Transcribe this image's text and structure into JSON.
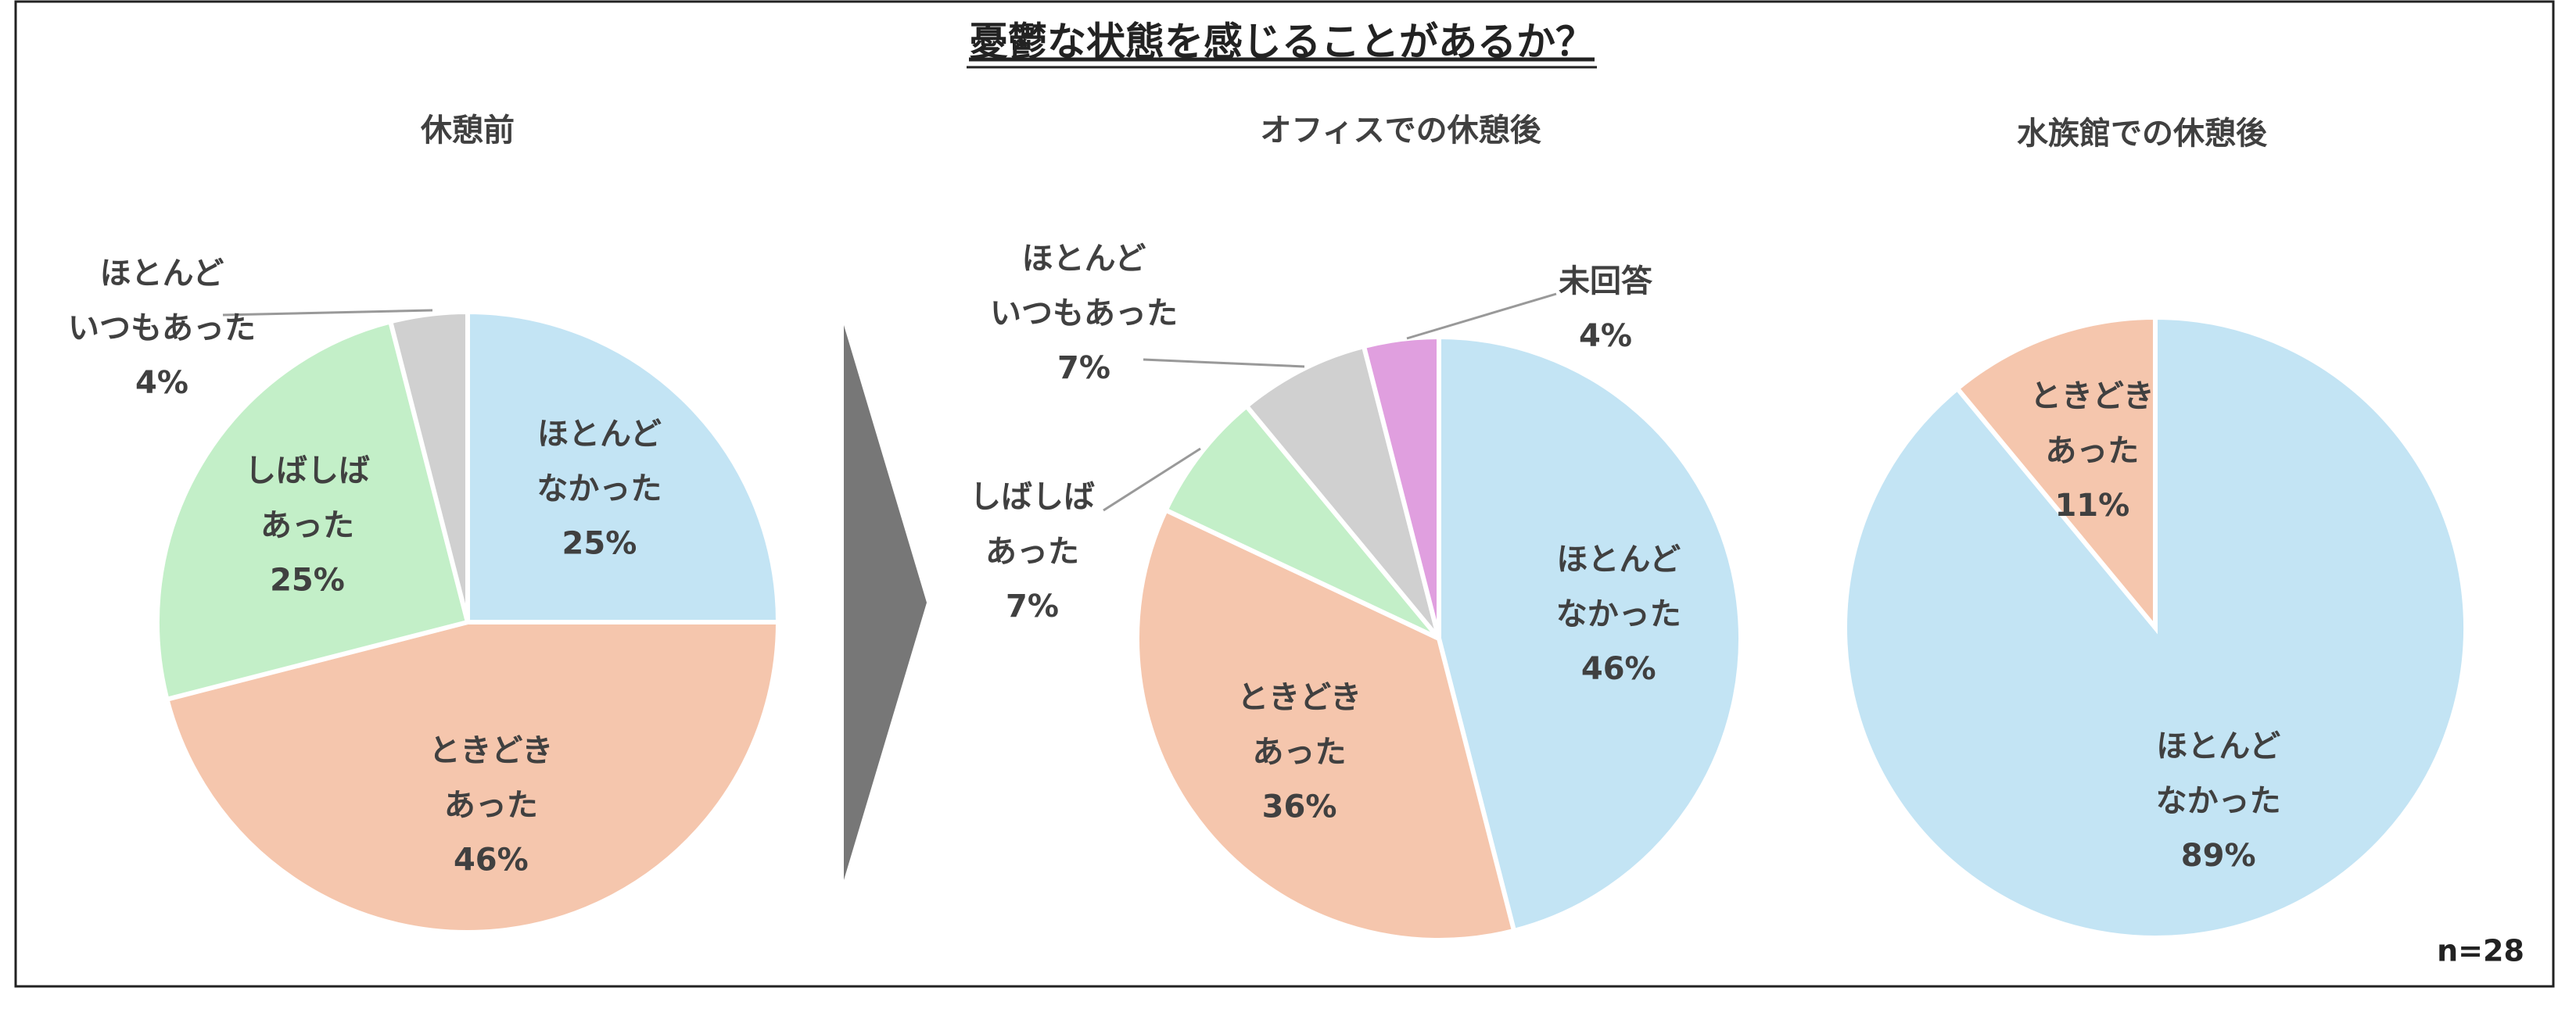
{
  "title": "憂鬱な状態を感じることがあるか？",
  "note": "n=28",
  "chart_data": [
    {
      "type": "pie",
      "title": "休憩前",
      "categories": [
        "ほとんど\nなかった",
        "ときどき\nあった",
        "しばしば\nあった",
        "ほとんど\nいつもあった"
      ],
      "values": [
        25,
        46,
        25,
        4
      ],
      "value_labels": [
        "25%",
        "46%",
        "25%",
        "4%"
      ],
      "colors": [
        "#c3e4f4",
        "#f5c6ad",
        "#c3efc8",
        "#d0d0d0"
      ]
    },
    {
      "type": "pie",
      "title": "オフィスでの休憩後",
      "categories": [
        "ほとんど\nなかった",
        "ときどき\nあった",
        "しばしば\nあった",
        "ほとんど\nいつもあった",
        "未回答"
      ],
      "values": [
        46,
        36,
        7,
        7,
        4
      ],
      "value_labels": [
        "46%",
        "36%",
        "7%",
        "7%",
        "4%"
      ],
      "colors": [
        "#c3e4f4",
        "#f5c6ad",
        "#c3efc8",
        "#d0d0d0",
        "#e09fdf"
      ]
    },
    {
      "type": "pie",
      "title": "水族館での休憩後",
      "categories": [
        "ほとんど\nなかった",
        "ときどき\nあった"
      ],
      "values": [
        89,
        11
      ],
      "value_labels": [
        "89%",
        "11%"
      ],
      "colors": [
        "#c3e4f4",
        "#f5c6ad"
      ]
    }
  ]
}
